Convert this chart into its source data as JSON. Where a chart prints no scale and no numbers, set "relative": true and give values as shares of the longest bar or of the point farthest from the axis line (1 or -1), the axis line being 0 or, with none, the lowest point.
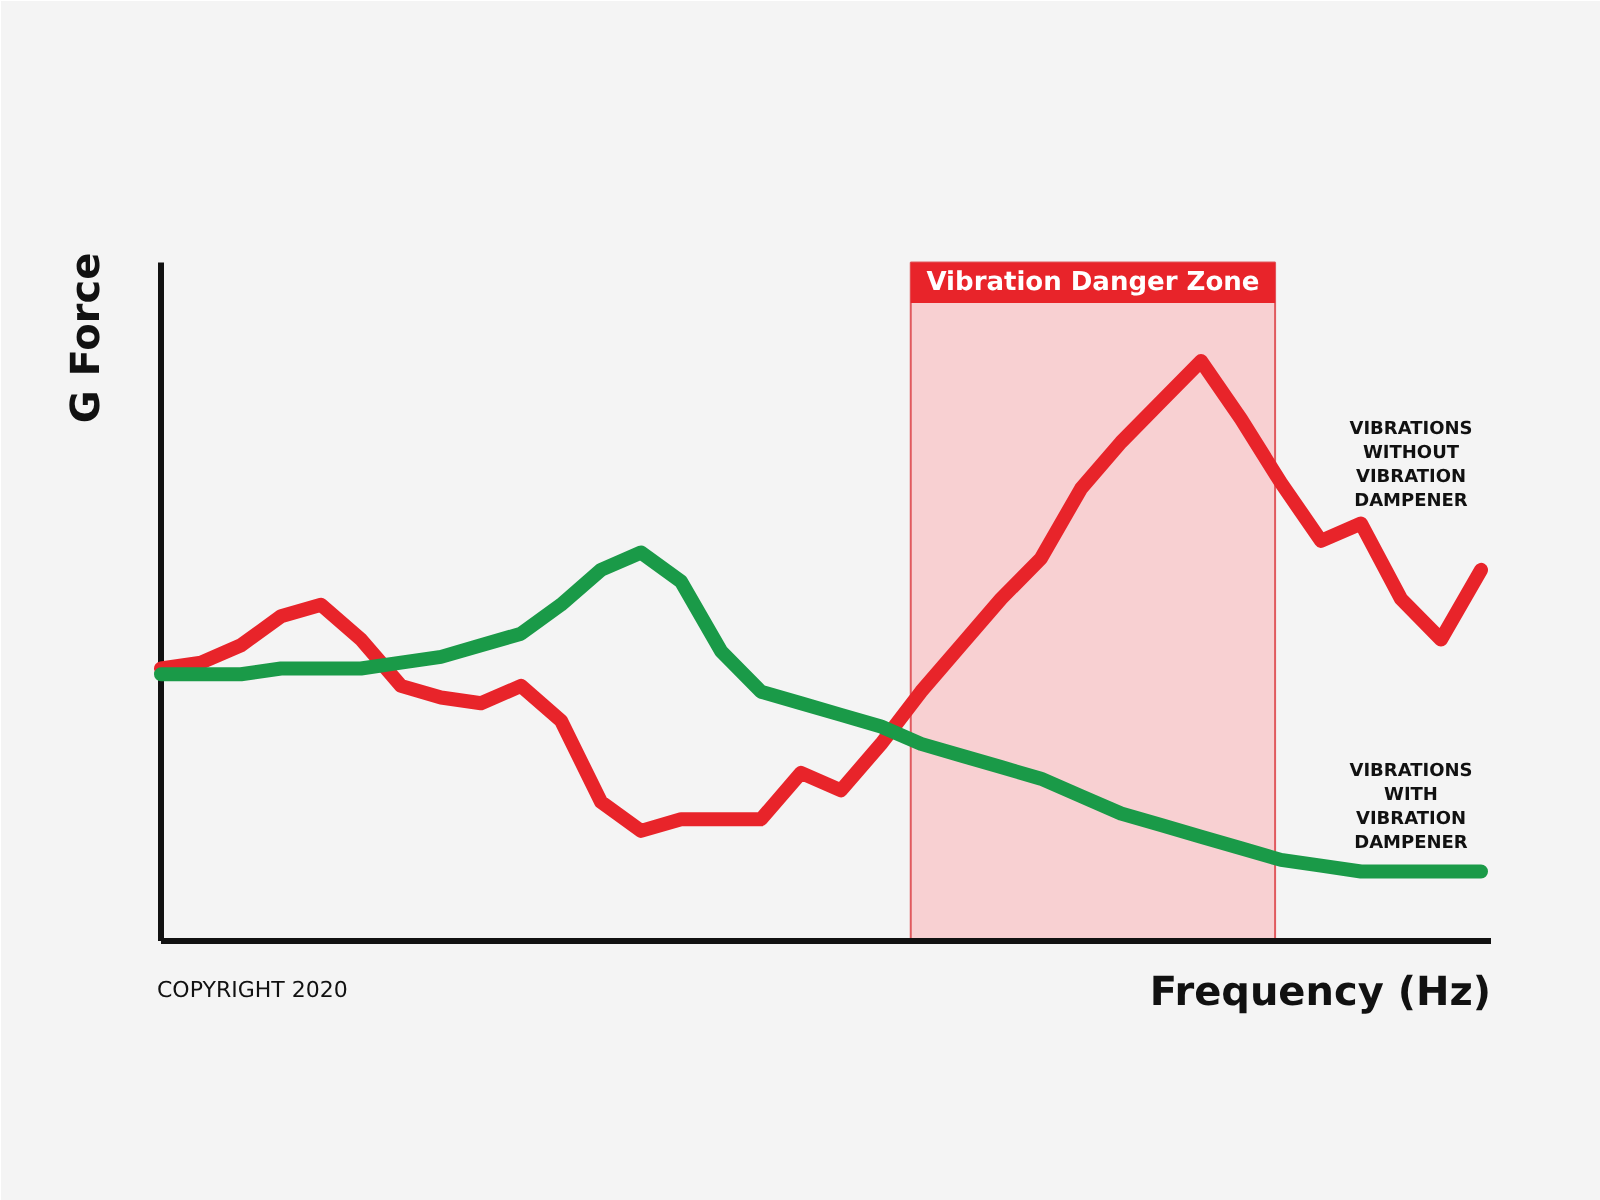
{
  "chart_data": {
    "type": "line",
    "relative": true,
    "xlabel": "Frequency (Hz)",
    "ylabel": "G Force",
    "categories": [
      null,
      null,
      null,
      null,
      null,
      null,
      null,
      null,
      null,
      null,
      null,
      null,
      null,
      null,
      null,
      null,
      null,
      null,
      null,
      null,
      null,
      null,
      null,
      null,
      null,
      null,
      null,
      null,
      null,
      null,
      null,
      null,
      null,
      null
    ],
    "series": [
      {
        "name": "VIBRATIONS WITHOUT VIBRATION DAMPENER",
        "color": "#e8242a",
        "values": [
          0.47,
          0.48,
          0.51,
          0.56,
          0.58,
          0.52,
          0.44,
          0.42,
          0.41,
          0.44,
          0.38,
          0.24,
          0.19,
          0.21,
          0.21,
          0.21,
          0.29,
          0.26,
          0.34,
          0.43,
          0.51,
          0.59,
          0.66,
          0.78,
          0.86,
          0.93,
          1,
          0.9,
          0.79,
          0.69,
          0.72,
          0.59,
          0.52,
          0.64
        ]
      },
      {
        "name": "VIBRATIONS WITH VIBRATION DAMPENER",
        "color": "#1a9a48",
        "values": [
          0.46,
          0.46,
          0.46,
          0.47,
          0.47,
          0.47,
          0.48,
          0.49,
          0.51,
          0.53,
          0.58,
          0.64,
          0.67,
          0.62,
          0.5,
          0.43,
          0.41,
          0.39,
          0.37,
          0.34,
          0.32,
          0.3,
          0.28,
          0.25,
          0.22,
          0.2,
          0.18,
          0.16,
          0.14,
          0.13,
          0.12,
          0.12,
          0.12,
          0.12
        ]
      }
    ],
    "annotations": [
      "Vibration Danger Zone",
      "COPYRIGHT 2020"
    ]
  }
}
